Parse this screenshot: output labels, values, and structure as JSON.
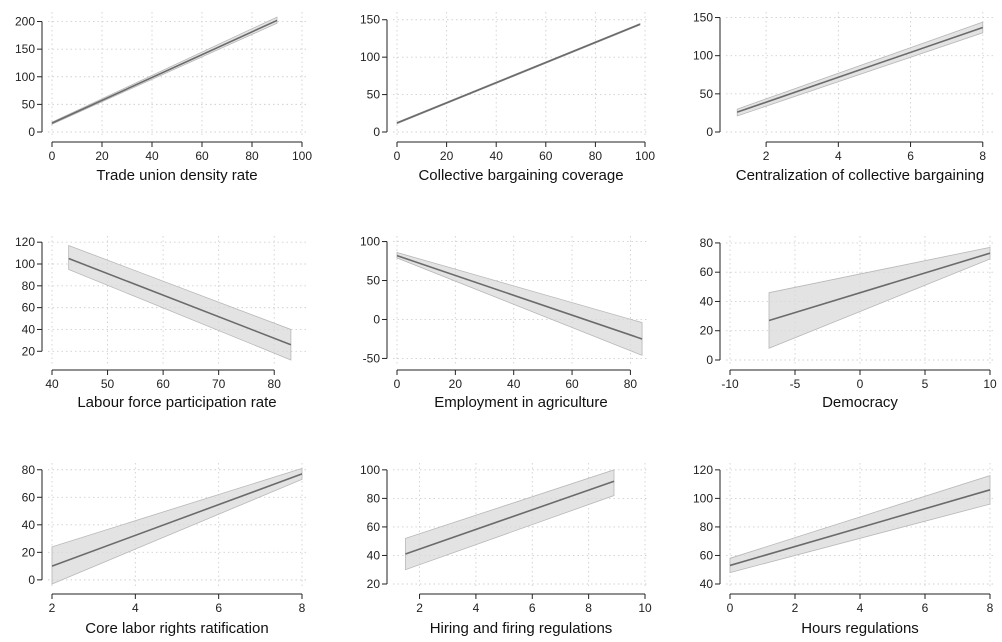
{
  "colors": {
    "fit_line": "#6b6b6b",
    "ci_band": "#d9d9d9",
    "grid": "#d0d0d0",
    "axis": "#222222"
  },
  "chart_data": [
    {
      "type": "line",
      "title": "",
      "xlabel": "Trade union density rate",
      "ylabel": "",
      "xlim": [
        0,
        100
      ],
      "ylim": [
        0,
        210
      ],
      "xticks": [
        0,
        20,
        40,
        60,
        80,
        100
      ],
      "yticks": [
        0,
        50,
        100,
        150,
        200
      ],
      "grid": true,
      "series": [
        {
          "x": [
            0,
            90
          ],
          "y": [
            16,
            202
          ],
          "lower": [
            14,
            197
          ],
          "upper": [
            18,
            208
          ]
        }
      ]
    },
    {
      "type": "line",
      "title": "",
      "xlabel": "Collective bargaining coverage",
      "ylabel": "",
      "xlim": [
        0,
        100
      ],
      "ylim": [
        0,
        155
      ],
      "xticks": [
        0,
        20,
        40,
        60,
        80,
        100
      ],
      "yticks": [
        0,
        50,
        100,
        150
      ],
      "grid": true,
      "series": [
        {
          "x": [
            0,
            98
          ],
          "y": [
            12,
            144
          ],
          "lower": [
            11,
            143
          ],
          "upper": [
            13,
            145
          ]
        }
      ]
    },
    {
      "type": "line",
      "title": "",
      "xlabel": "Centralization of collective bargaining",
      "ylabel": "",
      "xlim": [
        1,
        8.2
      ],
      "ylim": [
        0,
        152
      ],
      "xticks": [
        2,
        4,
        6,
        8
      ],
      "yticks": [
        0,
        50,
        100,
        150
      ],
      "grid": true,
      "series": [
        {
          "x": [
            1.2,
            8
          ],
          "y": [
            26,
            137
          ],
          "lower": [
            21,
            130
          ],
          "upper": [
            30,
            144
          ]
        }
      ]
    },
    {
      "type": "line",
      "title": "",
      "xlabel": "Labour force participation rate",
      "ylabel": "",
      "xlim": [
        40,
        85
      ],
      "ylim": [
        12,
        122
      ],
      "xticks": [
        40,
        50,
        60,
        70,
        80
      ],
      "yticks": [
        20,
        40,
        60,
        80,
        100,
        120
      ],
      "grid": true,
      "series": [
        {
          "x": [
            43,
            83
          ],
          "y": [
            105,
            26
          ],
          "lower": [
            95,
            12
          ],
          "upper": [
            117,
            40
          ]
        }
      ]
    },
    {
      "type": "line",
      "title": "",
      "xlabel": "Employment in agriculture",
      "ylabel": "",
      "xlim": [
        0,
        85
      ],
      "ylim": [
        -52,
        102
      ],
      "xticks": [
        0,
        20,
        40,
        60,
        80
      ],
      "yticks": [
        -50,
        0,
        50,
        100
      ],
      "grid": true,
      "series": [
        {
          "x": [
            0,
            84
          ],
          "y": [
            82,
            -25
          ],
          "lower": [
            79,
            -46
          ],
          "upper": [
            86,
            -4
          ]
        }
      ]
    },
    {
      "type": "line",
      "title": "",
      "xlabel": "Democracy",
      "ylabel": "",
      "xlim": [
        -10,
        10
      ],
      "ylim": [
        0,
        82
      ],
      "xticks": [
        -10,
        -5,
        0,
        5,
        10
      ],
      "yticks": [
        0,
        20,
        40,
        60,
        80
      ],
      "grid": true,
      "series": [
        {
          "x": [
            -7,
            10
          ],
          "y": [
            27,
            73
          ],
          "lower": [
            8,
            69
          ],
          "upper": [
            46,
            77
          ]
        }
      ]
    },
    {
      "type": "line",
      "title": "",
      "xlabel": "Core labor rights ratification",
      "ylabel": "",
      "xlim": [
        2,
        8
      ],
      "ylim": [
        -3,
        82
      ],
      "xticks": [
        2,
        4,
        6,
        8
      ],
      "yticks": [
        0,
        20,
        40,
        60,
        80
      ],
      "grid": true,
      "series": [
        {
          "x": [
            2,
            8
          ],
          "y": [
            10,
            77
          ],
          "lower": [
            -3,
            73
          ],
          "upper": [
            24,
            81
          ]
        }
      ]
    },
    {
      "type": "line",
      "title": "",
      "xlabel": "Hiring and firing regulations",
      "ylabel": "",
      "xlim": [
        1.2,
        10
      ],
      "ylim": [
        20,
        102
      ],
      "xticks": [
        2,
        4,
        6,
        8,
        10
      ],
      "yticks": [
        20,
        40,
        60,
        80,
        100
      ],
      "grid": true,
      "series": [
        {
          "x": [
            1.5,
            8.9
          ],
          "y": [
            41,
            92
          ],
          "lower": [
            30,
            82
          ],
          "upper": [
            52,
            100
          ]
        }
      ]
    },
    {
      "type": "line",
      "title": "",
      "xlabel": "Hours regulations",
      "ylabel": "",
      "xlim": [
        0,
        8
      ],
      "ylim": [
        40,
        122
      ],
      "xticks": [
        0,
        2,
        4,
        6,
        8
      ],
      "yticks": [
        40,
        60,
        80,
        100,
        120
      ],
      "grid": true,
      "series": [
        {
          "x": [
            0,
            8
          ],
          "y": [
            53,
            106
          ],
          "lower": [
            48,
            96
          ],
          "upper": [
            58,
            116
          ]
        }
      ]
    }
  ]
}
